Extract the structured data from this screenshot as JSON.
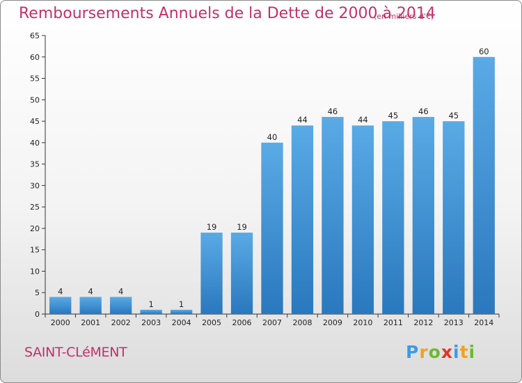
{
  "title": "Remboursements Annuels de la Dette de 2000 à 2014",
  "subtitle": "(en milliers d'€)",
  "commune": "SAINT-CLéMENT",
  "logo": {
    "text": "Proxiti",
    "letters": [
      {
        "ch": "P",
        "color": "#3d9be0"
      },
      {
        "ch": "r",
        "color": "#f3a21a"
      },
      {
        "ch": "o",
        "color": "#6cba2e"
      },
      {
        "ch": "x",
        "color": "#e63325"
      },
      {
        "ch": "i",
        "color": "#3d9be0"
      },
      {
        "ch": "t",
        "color": "#f3a21a"
      },
      {
        "ch": "i",
        "color": "#6cba2e"
      }
    ]
  },
  "colors": {
    "bar_light": "#5aaae6",
    "bar_dark": "#2a78bd",
    "title": "#c2306a"
  },
  "chart_data": {
    "type": "bar",
    "title": "Remboursements Annuels de la Dette de 2000 à 2014",
    "categories": [
      "2000",
      "2001",
      "2002",
      "2003",
      "2004",
      "2005",
      "2006",
      "2007",
      "2008",
      "2009",
      "2010",
      "2011",
      "2012",
      "2013",
      "2014"
    ],
    "values": [
      4,
      4,
      4,
      1,
      1,
      19,
      19,
      40,
      44,
      46,
      44,
      45,
      46,
      45,
      60
    ],
    "ylim": [
      0,
      65
    ],
    "yticks": [
      0,
      5,
      10,
      15,
      20,
      25,
      30,
      35,
      40,
      45,
      50,
      55,
      60,
      65
    ],
    "grid": false,
    "legend": "none"
  }
}
